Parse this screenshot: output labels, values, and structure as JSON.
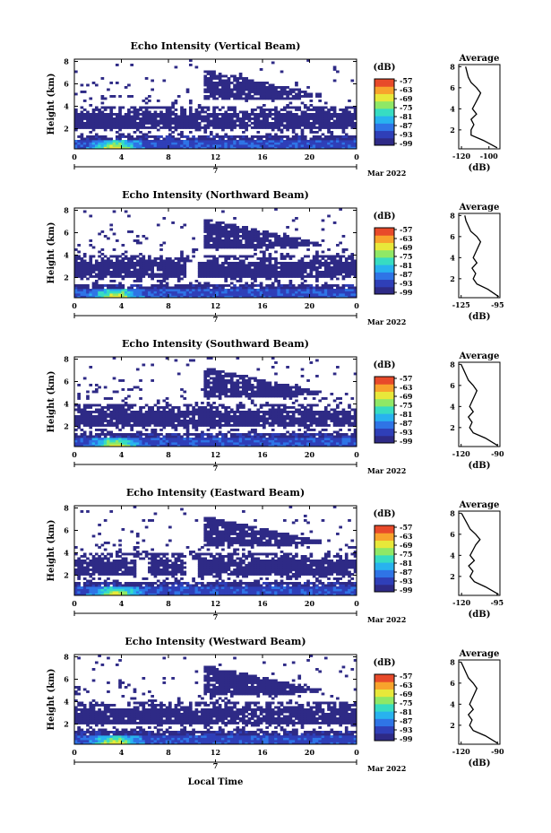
{
  "figure": {
    "xlabel_bottom": "Local Time",
    "date_label": "Mar 2022",
    "date_day": "7"
  },
  "colorbar": {
    "unit": "(dB)",
    "tick_labels": [
      "-57",
      "-63",
      "-69",
      "-75",
      "-81",
      "-87",
      "-93",
      "-99"
    ],
    "colors": [
      "#2e2a86",
      "#2f3fb8",
      "#2f74e6",
      "#28b2ef",
      "#37dcc2",
      "#8fe866",
      "#e8e83a",
      "#f8a32c",
      "#e84a2a"
    ]
  },
  "chart_data": [
    {
      "type": "heatmap",
      "title": "Echo Intensity (Vertical Beam)",
      "xlabel": "",
      "ylabel": "Height (km)",
      "x_ticks": [
        "0",
        "4",
        "8",
        "12",
        "16",
        "20",
        "0"
      ],
      "y_ticks": [
        "2",
        "4",
        "6",
        "8"
      ],
      "xlim": [
        0,
        24
      ],
      "ylim": [
        0.2,
        8.2
      ],
      "value_range_dB": [
        -99,
        -57
      ],
      "profile": {
        "title": "Average",
        "xlabel": "(dB)",
        "x_ticks": [
          "-120",
          "-100"
        ],
        "xlim": [
          -122,
          -92
        ],
        "y_ticks": [
          "2",
          "4",
          "6",
          "8"
        ],
        "ylim": [
          0.2,
          8.2
        ],
        "height_km": [
          0.3,
          1.0,
          1.5,
          2.0,
          2.5,
          3.0,
          3.5,
          4.0,
          4.5,
          5.0,
          5.5,
          6.0,
          6.5,
          7.0,
          7.5,
          8.0
        ],
        "power_dB": [
          -94,
          -104,
          -113,
          -113,
          -111,
          -113,
          -109,
          -112,
          -110,
          -108,
          -106,
          -109,
          -113,
          -115,
          -116,
          -117
        ]
      }
    },
    {
      "type": "heatmap",
      "title": "Echo Intensity (Northward Beam)",
      "xlabel": "",
      "ylabel": "Height (km)",
      "x_ticks": [
        "0",
        "4",
        "8",
        "12",
        "16",
        "20",
        "0"
      ],
      "y_ticks": [
        "2",
        "4",
        "6",
        "8"
      ],
      "xlim": [
        0,
        24
      ],
      "ylim": [
        0.2,
        8.2
      ],
      "value_range_dB": [
        -99,
        -57
      ],
      "profile": {
        "title": "Average",
        "xlabel": "(dB)",
        "x_ticks": [
          "-125",
          "-95"
        ],
        "xlim": [
          -127,
          -93
        ],
        "y_ticks": [
          "2",
          "4",
          "6",
          "8"
        ],
        "ylim": [
          0.2,
          8.2
        ],
        "height_km": [
          0.3,
          1.0,
          1.5,
          2.0,
          2.5,
          3.0,
          3.5,
          4.0,
          4.5,
          5.0,
          5.5,
          6.0,
          6.5,
          7.0,
          7.5,
          8.0
        ],
        "power_dB": [
          -94,
          -103,
          -112,
          -115,
          -113,
          -116,
          -112,
          -115,
          -113,
          -111,
          -109,
          -112,
          -117,
          -119,
          -121,
          -122
        ]
      }
    },
    {
      "type": "heatmap",
      "title": "Echo Intensity (Southward Beam)",
      "xlabel": "",
      "ylabel": "Height (km)",
      "x_ticks": [
        "0",
        "4",
        "8",
        "12",
        "16",
        "20",
        "0"
      ],
      "y_ticks": [
        "2",
        "4",
        "6",
        "8"
      ],
      "xlim": [
        0,
        24
      ],
      "ylim": [
        0.2,
        8.2
      ],
      "value_range_dB": [
        -99,
        -57
      ],
      "profile": {
        "title": "Average",
        "xlabel": "(dB)",
        "x_ticks": [
          "-120",
          "-90"
        ],
        "xlim": [
          -122,
          -88
        ],
        "y_ticks": [
          "2",
          "4",
          "6",
          "8"
        ],
        "ylim": [
          0.2,
          8.2
        ],
        "height_km": [
          0.3,
          1.0,
          1.5,
          2.0,
          2.5,
          3.0,
          3.5,
          4.0,
          4.5,
          5.0,
          5.5,
          6.0,
          6.5,
          7.0,
          7.5,
          8.0
        ],
        "power_dB": [
          -90,
          -100,
          -110,
          -113,
          -111,
          -114,
          -110,
          -113,
          -111,
          -109,
          -107,
          -110,
          -114,
          -116,
          -118,
          -120
        ]
      }
    },
    {
      "type": "heatmap",
      "title": "Echo Intensity (Eastward Beam)",
      "xlabel": "",
      "ylabel": "Height (km)",
      "x_ticks": [
        "0",
        "4",
        "8",
        "12",
        "16",
        "20",
        "0"
      ],
      "y_ticks": [
        "2",
        "4",
        "6",
        "8"
      ],
      "xlim": [
        0,
        24
      ],
      "ylim": [
        0.2,
        8.2
      ],
      "value_range_dB": [
        -99,
        -57
      ],
      "profile": {
        "title": "Average",
        "xlabel": "(dB)",
        "x_ticks": [
          "-120",
          "-95"
        ],
        "xlim": [
          -122,
          -93
        ],
        "y_ticks": [
          "2",
          "4",
          "6",
          "8"
        ],
        "ylim": [
          0.2,
          8.2
        ],
        "height_km": [
          0.3,
          1.0,
          1.5,
          2.0,
          2.5,
          3.0,
          3.5,
          4.0,
          4.5,
          5.0,
          5.5,
          6.0,
          6.5,
          7.0,
          7.5,
          8.0
        ],
        "power_dB": [
          -94,
          -103,
          -111,
          -114,
          -112,
          -115,
          -111,
          -114,
          -112,
          -110,
          -107,
          -110,
          -114,
          -116,
          -118,
          -120
        ]
      }
    },
    {
      "type": "heatmap",
      "title": "Echo Intensity (Westward Beam)",
      "xlabel": "",
      "ylabel": "Height (km)",
      "x_ticks": [
        "0",
        "4",
        "8",
        "12",
        "16",
        "20",
        "0"
      ],
      "y_ticks": [
        "2",
        "4",
        "6",
        "8"
      ],
      "xlim": [
        0,
        24
      ],
      "ylim": [
        0.2,
        8.2
      ],
      "value_range_dB": [
        -99,
        -57
      ],
      "profile": {
        "title": "Average",
        "xlabel": "(dB)",
        "x_ticks": [
          "-120",
          "-90"
        ],
        "xlim": [
          -122,
          -88
        ],
        "y_ticks": [
          "2",
          "4",
          "6",
          "8"
        ],
        "ylim": [
          0.2,
          8.2
        ],
        "height_km": [
          0.3,
          1.0,
          1.5,
          2.0,
          2.5,
          3.0,
          3.5,
          4.0,
          4.5,
          5.0,
          5.5,
          6.0,
          6.5,
          7.0,
          7.5,
          8.0
        ],
        "power_dB": [
          -90,
          -100,
          -110,
          -113,
          -111,
          -114,
          -110,
          -113,
          -111,
          -109,
          -107,
          -110,
          -114,
          -116,
          -118,
          -120
        ]
      }
    }
  ]
}
